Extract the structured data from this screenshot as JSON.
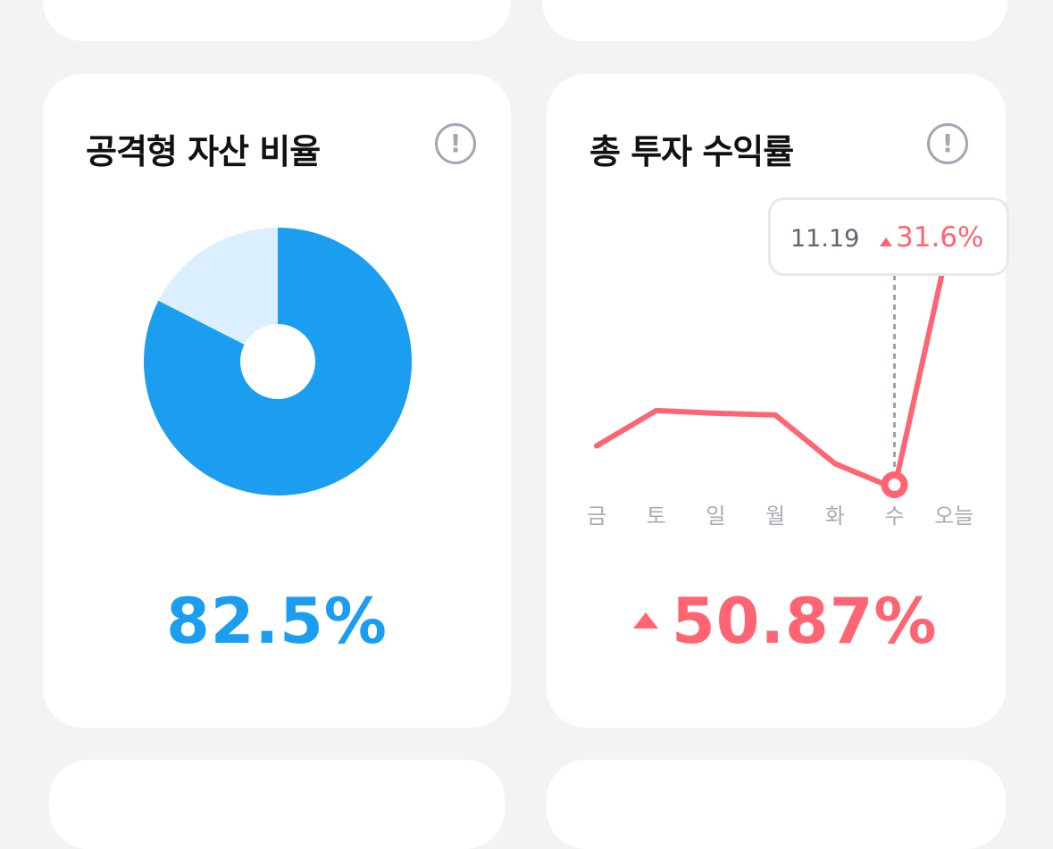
{
  "colors": {
    "accent_blue": "#1b9df0",
    "light_blue": "#dcefff",
    "red": "#ff6472",
    "gray": "#a3a7b3",
    "background": "#f2f3f5"
  },
  "aggressive_card": {
    "title": "공격형 자산 비율",
    "info_icon": "exclamation-circle-icon",
    "value": "82.5%",
    "aggressive_ratio": 82.5
  },
  "return_card": {
    "title": "총 투자 수익률",
    "info_icon": "exclamation-circle-icon",
    "value": "50.87%",
    "trend_icon": "triangle-up-icon",
    "tooltip": {
      "date": "11.19",
      "change": "31.6%"
    },
    "chart_data": {
      "type": "line",
      "categories": [
        "금",
        "토",
        "일",
        "월",
        "화",
        "수",
        "오늘"
      ],
      "values": [
        6,
        10,
        9.7,
        9.5,
        4,
        1.2,
        31.6
      ],
      "selected_index": 5
    }
  }
}
